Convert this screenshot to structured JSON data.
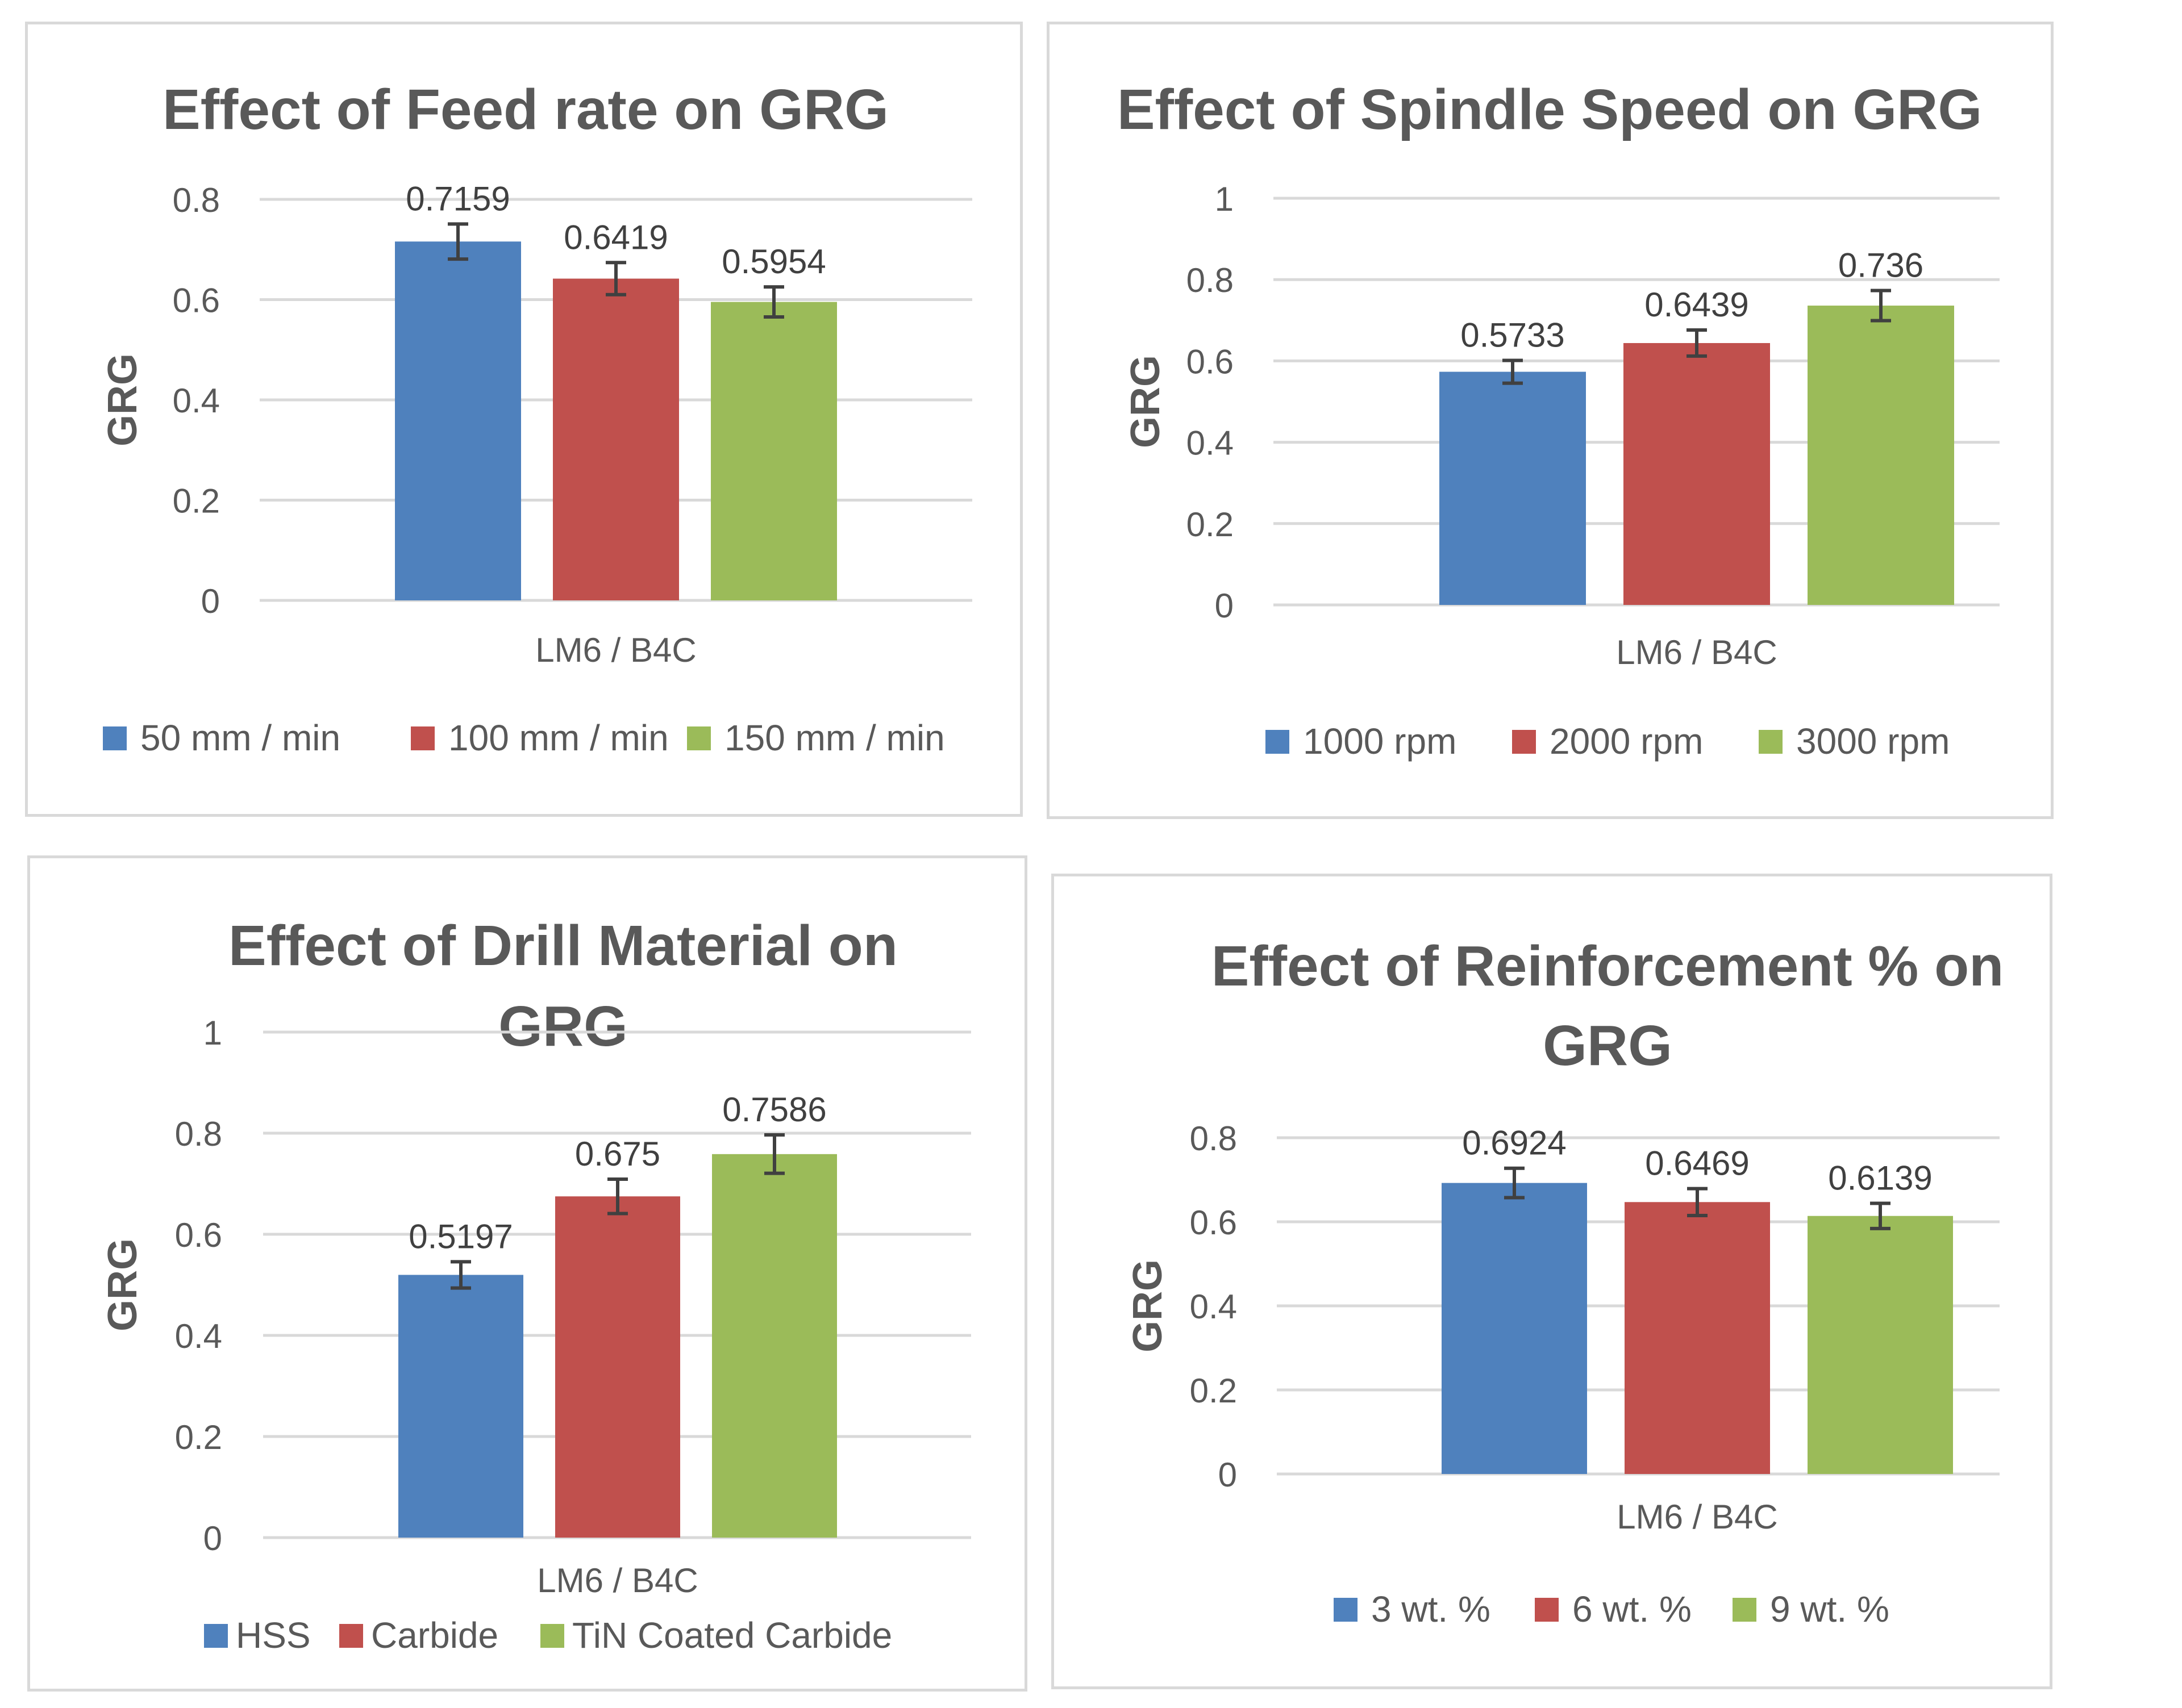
{
  "chart_data": [
    {
      "type": "bar",
      "title": "Effect of Feed rate on GRG",
      "title_lines": [
        "Effect of Feed rate on GRG"
      ],
      "xlabel": "LM6 / B4C",
      "ylabel": "GRG",
      "ylim": [
        0,
        0.8
      ],
      "yticks": [
        "0",
        "0.2",
        "0.4",
        "0.6",
        "0.8"
      ],
      "categories": [
        "LM6 / B4C"
      ],
      "series": [
        {
          "name": "50 mm / min",
          "value": 0.7159,
          "label": "0.7159",
          "error": 0.035,
          "color": "#4f81bd"
        },
        {
          "name": "100 mm / min",
          "value": 0.6419,
          "label": "0.6419",
          "error": 0.032,
          "color": "#c0504d"
        },
        {
          "name": "150 mm / min",
          "value": 0.5954,
          "label": "0.5954",
          "error": 0.03,
          "color": "#9bbb59"
        }
      ],
      "legend": "bottom"
    },
    {
      "type": "bar",
      "title": "Effect of Spindle Speed on GRG",
      "title_lines": [
        "Effect of Spindle Speed on GRG"
      ],
      "xlabel": "LM6 / B4C",
      "ylabel": "GRG",
      "ylim": [
        0,
        1
      ],
      "yticks": [
        "0",
        "0.2",
        "0.4",
        "0.6",
        "0.8",
        "1"
      ],
      "categories": [
        "LM6 / B4C"
      ],
      "series": [
        {
          "name": "1000 rpm",
          "value": 0.5733,
          "label": "0.5733",
          "error": 0.028,
          "color": "#4f81bd"
        },
        {
          "name": "2000 rpm",
          "value": 0.6439,
          "label": "0.6439",
          "error": 0.032,
          "color": "#c0504d"
        },
        {
          "name": "3000 rpm",
          "value": 0.736,
          "label": "0.736",
          "error": 0.037,
          "color": "#9bbb59"
        }
      ],
      "legend": "bottom"
    },
    {
      "type": "bar",
      "title": "Effect of Drill Material on GRG",
      "title_lines": [
        "Effect of Drill Material on",
        "GRG"
      ],
      "xlabel": "LM6 / B4C",
      "ylabel": "GRG",
      "ylim": [
        0,
        1
      ],
      "yticks": [
        "0",
        "0.2",
        "0.4",
        "0.6",
        "0.8",
        "1"
      ],
      "categories": [
        "LM6 / B4C"
      ],
      "series": [
        {
          "name": "HSS",
          "value": 0.5197,
          "label": "0.5197",
          "error": 0.026,
          "color": "#4f81bd"
        },
        {
          "name": "Carbide",
          "value": 0.675,
          "label": "0.675",
          "error": 0.034,
          "color": "#c0504d"
        },
        {
          "name": "TiN Coated Carbide",
          "value": 0.7586,
          "label": "0.7586",
          "error": 0.038,
          "color": "#9bbb59"
        }
      ],
      "legend": "bottom"
    },
    {
      "type": "bar",
      "title": "Effect of Reinforcement % on GRG",
      "title_lines": [
        "Effect of Reinforcement % on",
        "GRG"
      ],
      "xlabel": "LM6 / B4C",
      "ylabel": "GRG",
      "ylim": [
        0,
        0.8
      ],
      "yticks": [
        "0",
        "0.2",
        "0.4",
        "0.6",
        "0.8"
      ],
      "categories": [
        "LM6 / B4C"
      ],
      "series": [
        {
          "name": "3 wt. %",
          "value": 0.6924,
          "label": "0.6924",
          "error": 0.035,
          "color": "#4f81bd"
        },
        {
          "name": "6 wt. %",
          "value": 0.6469,
          "label": "0.6469",
          "error": 0.032,
          "color": "#c0504d"
        },
        {
          "name": "9 wt. %",
          "value": 0.6139,
          "label": "0.6139",
          "error": 0.03,
          "color": "#9bbb59"
        }
      ],
      "legend": "bottom"
    }
  ]
}
